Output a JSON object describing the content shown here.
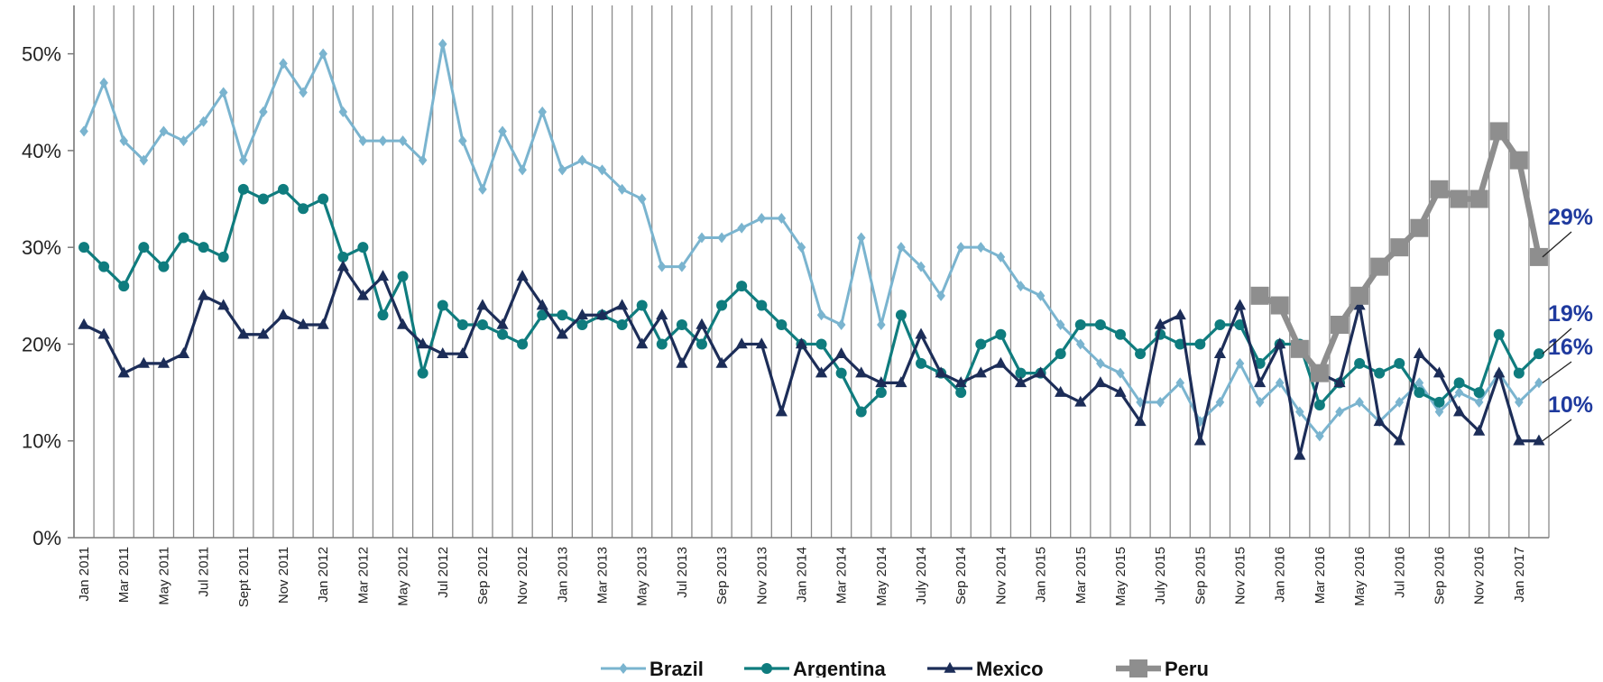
{
  "chart_data": {
    "type": "line",
    "categories": [
      "Jan 2011",
      null,
      "Mar 2011",
      null,
      "May 2011",
      null,
      "Jul 2011",
      null,
      "Sept 2011",
      null,
      "Nov 2011",
      null,
      "Jan 2012",
      null,
      "Mar 2012",
      null,
      "May 2012",
      null,
      "Jul 2012",
      null,
      "Sep 2012",
      null,
      "Nov 2012",
      null,
      "Jan 2013",
      null,
      "Mar 2013",
      null,
      "May 2013",
      null,
      "Jul 2013",
      null,
      "Sep 2013",
      null,
      "Nov 2013",
      null,
      "Jan 2014",
      null,
      "Mar 2014",
      null,
      "May 2014",
      null,
      "July 2014",
      null,
      "Sep 2014",
      null,
      "Nov 2014",
      null,
      "Jan 2015",
      null,
      "Mar 2015",
      null,
      "May 2015",
      null,
      "July 2015",
      null,
      "Sep 2015",
      null,
      "Nov 2015",
      null,
      "Jan 2016",
      null,
      "Mar 2016",
      null,
      "May 2016",
      null,
      "Jul 2016",
      null,
      "Sep 2016",
      null,
      "Nov 2016",
      null,
      "Jan 2017",
      null
    ],
    "ylim": [
      0,
      55
    ],
    "yticks": [
      {
        "value": 0,
        "label": "0%"
      },
      {
        "value": 10,
        "label": "10%"
      },
      {
        "value": 20,
        "label": "20%"
      },
      {
        "value": 30,
        "label": "30%"
      },
      {
        "value": 40,
        "label": "40%"
      },
      {
        "value": 50,
        "label": "50%"
      }
    ],
    "grid": false,
    "legend": "bottom",
    "series": [
      {
        "name": "Brazil",
        "color": "#7ab4cf",
        "marker": "diamond",
        "values": [
          42,
          47,
          41,
          39,
          42,
          41,
          43,
          46,
          39,
          44,
          49,
          46,
          50,
          44,
          41,
          41,
          41,
          39,
          51,
          41,
          36,
          42,
          38,
          44,
          38,
          39,
          38,
          36,
          35,
          28,
          28,
          31,
          31,
          32,
          33,
          33,
          30,
          23,
          22,
          31,
          22,
          30,
          28,
          25,
          30,
          30,
          29,
          26,
          25,
          22,
          20,
          18,
          17,
          14,
          14,
          16,
          12,
          14,
          18,
          14,
          16,
          13,
          10.5,
          13,
          14,
          12,
          14,
          16,
          13,
          15,
          14,
          17,
          14,
          16
        ],
        "value_labels": [
          null,
          null,
          null,
          null,
          null,
          null,
          null,
          null,
          null,
          null,
          null,
          null,
          null,
          null,
          null,
          null,
          null,
          null,
          null,
          null,
          null,
          null,
          null,
          null,
          null,
          null,
          null,
          null,
          null,
          null,
          null,
          null,
          null,
          null,
          null,
          null,
          null,
          null,
          null,
          null,
          null,
          null,
          null,
          null,
          null,
          null,
          null,
          null,
          null,
          null,
          null,
          null,
          null,
          null,
          null,
          null,
          null,
          null,
          null,
          null,
          null,
          null,
          null,
          null,
          null,
          null,
          null,
          null,
          null,
          null,
          null,
          null,
          null,
          "16%"
        ]
      },
      {
        "name": "Argentina",
        "color": "#0f7c7e",
        "marker": "circle",
        "values": [
          30,
          28,
          26,
          30,
          28,
          31,
          30,
          29,
          36,
          35,
          36,
          34,
          35,
          29,
          30,
          23,
          27,
          17,
          24,
          22,
          22,
          21,
          20,
          23,
          23,
          22,
          23,
          22,
          24,
          20,
          22,
          20,
          24,
          26,
          24,
          22,
          20,
          20,
          17,
          13,
          15,
          23,
          18,
          17,
          15,
          20,
          21,
          17,
          17,
          19,
          22,
          22,
          21,
          19,
          21,
          20,
          20,
          22,
          22,
          18,
          20,
          20,
          13.7,
          16,
          18,
          17,
          18,
          15,
          14,
          16,
          15,
          21,
          17,
          19
        ],
        "value_labels": [
          null,
          null,
          null,
          null,
          null,
          null,
          null,
          null,
          null,
          null,
          null,
          null,
          null,
          null,
          null,
          null,
          null,
          null,
          null,
          null,
          null,
          null,
          null,
          null,
          null,
          null,
          null,
          null,
          null,
          null,
          null,
          null,
          null,
          null,
          null,
          null,
          null,
          null,
          null,
          null,
          null,
          null,
          null,
          null,
          null,
          null,
          null,
          null,
          null,
          null,
          null,
          null,
          null,
          null,
          null,
          null,
          null,
          null,
          null,
          null,
          null,
          null,
          null,
          null,
          null,
          null,
          null,
          null,
          null,
          null,
          null,
          null,
          null,
          "19%"
        ]
      },
      {
        "name": "Mexico",
        "color": "#1c2d58",
        "marker": "triangle",
        "values": [
          22,
          21,
          17,
          18,
          18,
          19,
          25,
          24,
          21,
          21,
          23,
          22,
          22,
          28,
          25,
          27,
          22,
          20,
          19,
          19,
          24,
          22,
          27,
          24,
          21,
          23,
          23,
          24,
          20,
          23,
          18,
          22,
          18,
          20,
          20,
          13,
          20,
          17,
          19,
          17,
          16,
          16,
          21,
          17,
          16,
          17,
          18,
          16,
          17,
          15,
          14,
          16,
          15,
          12,
          22,
          23,
          10,
          19,
          24,
          16,
          20,
          8.5,
          17,
          16,
          24,
          12,
          10,
          19,
          17,
          13,
          11,
          17,
          10,
          10
        ],
        "value_labels": [
          null,
          null,
          null,
          null,
          null,
          null,
          null,
          null,
          null,
          null,
          null,
          null,
          null,
          null,
          null,
          null,
          null,
          null,
          null,
          null,
          null,
          null,
          null,
          null,
          null,
          null,
          null,
          null,
          null,
          null,
          null,
          null,
          null,
          null,
          null,
          null,
          null,
          null,
          null,
          null,
          null,
          null,
          null,
          null,
          null,
          null,
          null,
          null,
          null,
          null,
          null,
          null,
          null,
          null,
          null,
          null,
          null,
          null,
          null,
          null,
          null,
          null,
          null,
          null,
          null,
          null,
          null,
          null,
          null,
          null,
          null,
          null,
          null,
          "10%"
        ]
      },
      {
        "name": "Peru",
        "color": "#8e8e8e",
        "marker": "square",
        "values": [
          null,
          null,
          null,
          null,
          null,
          null,
          null,
          null,
          null,
          null,
          null,
          null,
          null,
          null,
          null,
          null,
          null,
          null,
          null,
          null,
          null,
          null,
          null,
          null,
          null,
          null,
          null,
          null,
          null,
          null,
          null,
          null,
          null,
          null,
          null,
          null,
          null,
          null,
          null,
          null,
          null,
          null,
          null,
          null,
          null,
          null,
          null,
          null,
          null,
          null,
          null,
          null,
          null,
          null,
          null,
          null,
          null,
          null,
          null,
          25,
          24,
          19.5,
          17,
          22,
          25,
          28,
          30,
          32,
          36,
          35,
          35,
          42,
          39,
          29
        ],
        "value_labels": [
          null,
          null,
          null,
          null,
          null,
          null,
          null,
          null,
          null,
          null,
          null,
          null,
          null,
          null,
          null,
          null,
          null,
          null,
          null,
          null,
          null,
          null,
          null,
          null,
          null,
          null,
          null,
          null,
          null,
          null,
          null,
          null,
          null,
          null,
          null,
          null,
          null,
          null,
          null,
          null,
          null,
          null,
          null,
          null,
          null,
          null,
          null,
          null,
          null,
          null,
          null,
          null,
          null,
          null,
          null,
          null,
          null,
          null,
          null,
          null,
          null,
          null,
          null,
          null,
          null,
          null,
          null,
          null,
          null,
          null,
          null,
          null,
          null,
          "29%"
        ]
      }
    ]
  }
}
